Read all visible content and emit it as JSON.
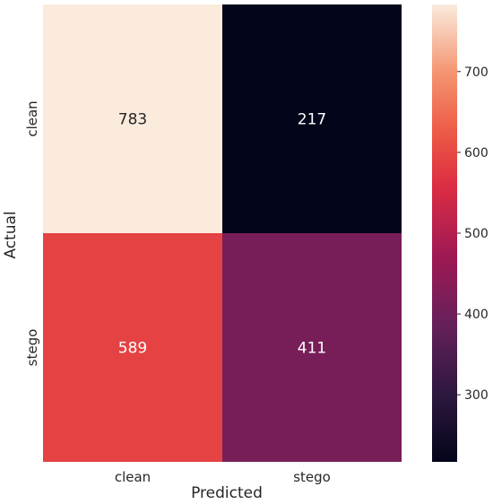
{
  "chart_data": {
    "type": "heatmap",
    "title": "",
    "xlabel": "Predicted",
    "ylabel": "Actual",
    "x_categories": [
      "clean",
      "stego"
    ],
    "y_categories": [
      "clean",
      "stego"
    ],
    "values": [
      [
        783,
        217
      ],
      [
        589,
        411
      ]
    ],
    "colormap": "rocket",
    "colorbar": {
      "range": [
        217,
        783
      ],
      "ticks": [
        300,
        400,
        500,
        600,
        700
      ]
    },
    "cell_text_colors": [
      [
        "#262626",
        "#ffffff"
      ],
      [
        "#ffffff",
        "#ffffff"
      ]
    ]
  }
}
